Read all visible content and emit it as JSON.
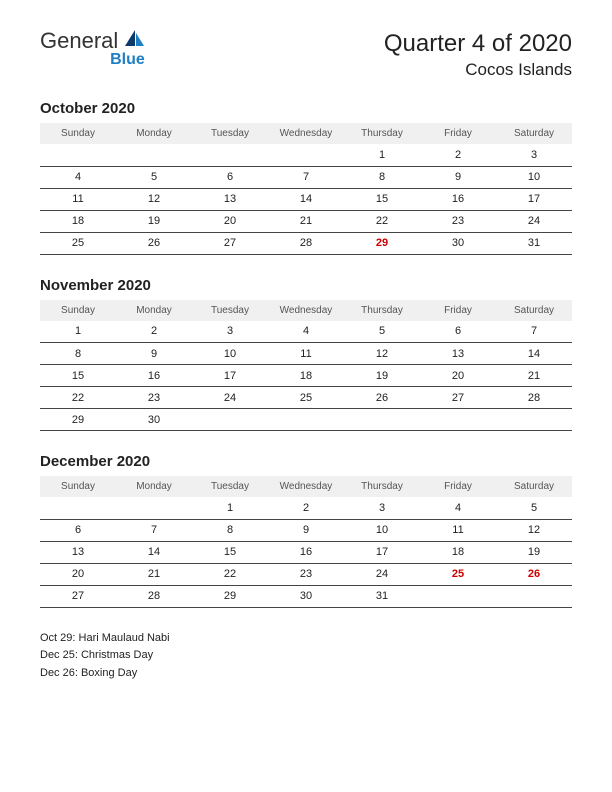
{
  "logo": {
    "text_general": "General",
    "text_blue": "Blue",
    "sail_color": "#1e7fc4"
  },
  "header": {
    "title": "Quarter 4 of 2020",
    "region": "Cocos Islands"
  },
  "weekdays": [
    "Sunday",
    "Monday",
    "Tuesday",
    "Wednesday",
    "Thursday",
    "Friday",
    "Saturday"
  ],
  "months": [
    {
      "title": "October 2020",
      "weeks": [
        [
          null,
          null,
          null,
          null,
          {
            "d": 1
          },
          {
            "d": 2
          },
          {
            "d": 3
          }
        ],
        [
          {
            "d": 4
          },
          {
            "d": 5
          },
          {
            "d": 6
          },
          {
            "d": 7
          },
          {
            "d": 8
          },
          {
            "d": 9
          },
          {
            "d": 10
          }
        ],
        [
          {
            "d": 11
          },
          {
            "d": 12
          },
          {
            "d": 13
          },
          {
            "d": 14
          },
          {
            "d": 15
          },
          {
            "d": 16
          },
          {
            "d": 17
          }
        ],
        [
          {
            "d": 18
          },
          {
            "d": 19
          },
          {
            "d": 20
          },
          {
            "d": 21
          },
          {
            "d": 22
          },
          {
            "d": 23
          },
          {
            "d": 24
          }
        ],
        [
          {
            "d": 25
          },
          {
            "d": 26
          },
          {
            "d": 27
          },
          {
            "d": 28
          },
          {
            "d": 29,
            "h": true
          },
          {
            "d": 30
          },
          {
            "d": 31
          }
        ]
      ]
    },
    {
      "title": "November 2020",
      "weeks": [
        [
          {
            "d": 1
          },
          {
            "d": 2
          },
          {
            "d": 3
          },
          {
            "d": 4
          },
          {
            "d": 5
          },
          {
            "d": 6
          },
          {
            "d": 7
          }
        ],
        [
          {
            "d": 8
          },
          {
            "d": 9
          },
          {
            "d": 10
          },
          {
            "d": 11
          },
          {
            "d": 12
          },
          {
            "d": 13
          },
          {
            "d": 14
          }
        ],
        [
          {
            "d": 15
          },
          {
            "d": 16
          },
          {
            "d": 17
          },
          {
            "d": 18
          },
          {
            "d": 19
          },
          {
            "d": 20
          },
          {
            "d": 21
          }
        ],
        [
          {
            "d": 22
          },
          {
            "d": 23
          },
          {
            "d": 24
          },
          {
            "d": 25
          },
          {
            "d": 26
          },
          {
            "d": 27
          },
          {
            "d": 28
          }
        ],
        [
          {
            "d": 29
          },
          {
            "d": 30
          },
          null,
          null,
          null,
          null,
          null
        ]
      ]
    },
    {
      "title": "December 2020",
      "weeks": [
        [
          null,
          null,
          {
            "d": 1
          },
          {
            "d": 2
          },
          {
            "d": 3
          },
          {
            "d": 4
          },
          {
            "d": 5
          }
        ],
        [
          {
            "d": 6
          },
          {
            "d": 7
          },
          {
            "d": 8
          },
          {
            "d": 9
          },
          {
            "d": 10
          },
          {
            "d": 11
          },
          {
            "d": 12
          }
        ],
        [
          {
            "d": 13
          },
          {
            "d": 14
          },
          {
            "d": 15
          },
          {
            "d": 16
          },
          {
            "d": 17
          },
          {
            "d": 18
          },
          {
            "d": 19
          }
        ],
        [
          {
            "d": 20
          },
          {
            "d": 21
          },
          {
            "d": 22
          },
          {
            "d": 23
          },
          {
            "d": 24
          },
          {
            "d": 25,
            "h": true
          },
          {
            "d": 26,
            "h": true
          }
        ],
        [
          {
            "d": 27
          },
          {
            "d": 28
          },
          {
            "d": 29
          },
          {
            "d": 30
          },
          {
            "d": 31
          },
          null,
          null
        ]
      ]
    }
  ],
  "holidays": [
    "Oct 29: Hari Maulaud Nabi",
    "Dec 25: Christmas Day",
    "Dec 26: Boxing Day"
  ],
  "style": {
    "holiday_color": "#cc0000",
    "header_bg": "#f0f0f0",
    "row_border": "#444444",
    "text_color": "#222222",
    "page_bg": "#ffffff"
  }
}
